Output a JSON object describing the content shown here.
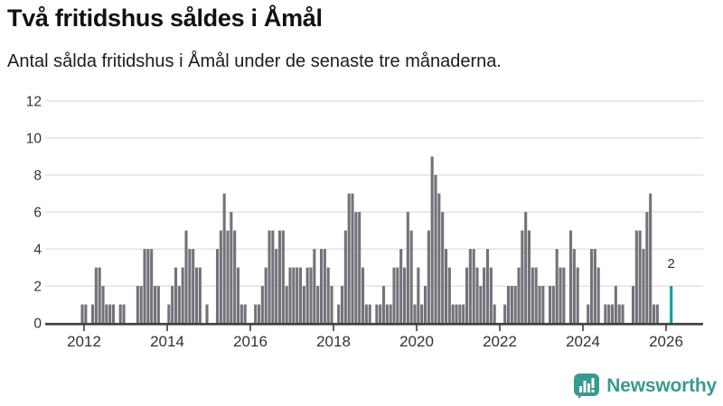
{
  "header": {
    "title": "Två fritidshus såldes i Åmål",
    "subtitle": "Antal sålda fritidshus i Åmål under de senaste tre månaderna."
  },
  "chart_data": {
    "type": "bar",
    "title": "Två fritidshus såldes i Åmål",
    "xlabel": "",
    "ylabel": "",
    "ylim": [
      0,
      12
    ],
    "yticks": [
      0,
      2,
      4,
      6,
      8,
      10,
      12
    ],
    "xticks": [
      2012,
      2014,
      2016,
      2018,
      2020,
      2022,
      2024,
      2026
    ],
    "grid": "horizontal",
    "frequency": "monthly",
    "start_month": "2011-12",
    "end_month": "2026-02",
    "values": [
      1,
      1,
      0,
      1,
      3,
      3,
      2,
      1,
      1,
      1,
      0,
      1,
      1,
      0,
      0,
      0,
      2,
      2,
      4,
      4,
      4,
      2,
      2,
      0,
      0,
      1,
      2,
      3,
      2,
      3,
      5,
      4,
      4,
      3,
      3,
      0,
      1,
      0,
      0,
      4,
      5,
      7,
      5,
      6,
      5,
      3,
      1,
      1,
      0,
      0,
      1,
      1,
      2,
      3,
      5,
      5,
      4,
      5,
      5,
      2,
      3,
      3,
      3,
      3,
      2,
      3,
      3,
      4,
      2,
      4,
      4,
      3,
      2,
      0,
      1,
      2,
      5,
      7,
      7,
      6,
      6,
      3,
      1,
      1,
      0,
      1,
      1,
      2,
      1,
      1,
      3,
      3,
      4,
      3,
      6,
      5,
      1,
      3,
      1,
      2,
      5,
      9,
      8,
      7,
      6,
      4,
      3,
      1,
      1,
      1,
      1,
      3,
      4,
      4,
      3,
      2,
      3,
      4,
      3,
      1,
      0,
      0,
      1,
      2,
      2,
      2,
      3,
      5,
      6,
      5,
      3,
      3,
      2,
      2,
      0,
      2,
      2,
      4,
      3,
      3,
      0,
      5,
      4,
      3,
      0,
      0,
      1,
      4,
      4,
      3,
      0,
      1,
      1,
      1,
      2,
      1,
      1,
      0,
      0,
      2,
      5,
      5,
      4,
      6,
      7,
      1,
      1,
      0,
      0,
      0,
      2
    ],
    "highlight": {
      "month": "2026-02",
      "value": 2,
      "label": "2"
    },
    "legend": "none",
    "colors": {
      "bar": "#72727b",
      "highlight": "#0aa0a0",
      "grid": "#e4e4e4",
      "axis": "#3d3d3d",
      "tick_label": "#333333",
      "annotation": "#2b2b2b"
    }
  },
  "footer": {
    "brand": "Newsworthy",
    "brand_color": "#379a92",
    "logo_icon": "bar-chart-speech-bubble-icon"
  }
}
